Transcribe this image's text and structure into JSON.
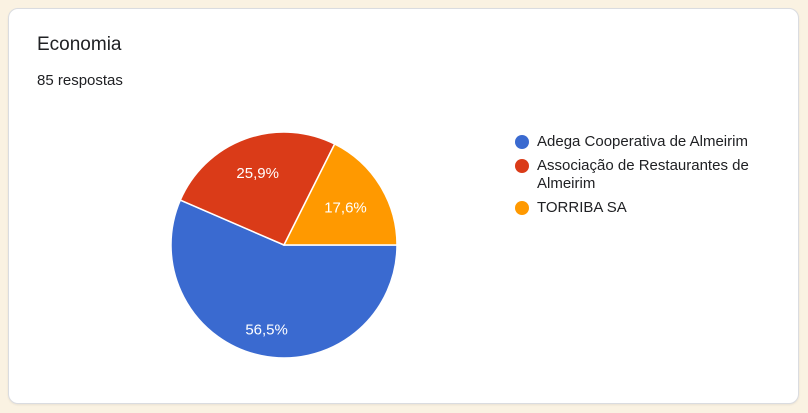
{
  "page": {
    "background_color": "#faf2e2"
  },
  "card": {
    "title": "Economia",
    "responses_label": "85 respostas",
    "background_color": "#ffffff",
    "border_color": "#dadce0"
  },
  "chart_data": {
    "type": "pie",
    "title": "Economia",
    "subtitle": "85 respostas",
    "total_responses_shown": 85,
    "legend_position": "right",
    "start": "3-oclock-clockwise",
    "slice_separator_color": "#ffffff",
    "slice_label_text_color": "#ffffff",
    "slices": [
      {
        "label": "Adega Cooperativa de Almeirim",
        "percent": 56.5,
        "display": "56,5%",
        "color": "#3a6ad0"
      },
      {
        "label": "Associação de Restaurantes de Almeirim",
        "percent": 25.9,
        "display": "25,9%",
        "color": "#da3b18"
      },
      {
        "label": "TORRIBA SA",
        "percent": 17.6,
        "display": "17,6%",
        "color": "#ff9900"
      }
    ]
  }
}
